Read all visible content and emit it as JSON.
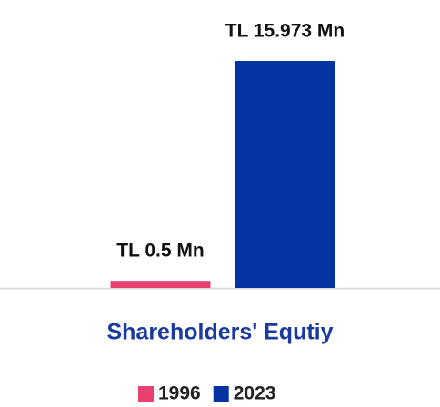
{
  "chart_data": {
    "type": "bar",
    "categories": [
      "Shareholders' Equtiy"
    ],
    "series": [
      {
        "name": "1996",
        "color": "#e8416f",
        "values": [
          0.5
        ],
        "value_labels": [
          "TL 0.5 Mn"
        ]
      },
      {
        "name": "2023",
        "color": "#0533a1",
        "values": [
          15.973
        ],
        "value_labels": [
          "TL 15.973 Mn"
        ]
      }
    ]
  }
}
